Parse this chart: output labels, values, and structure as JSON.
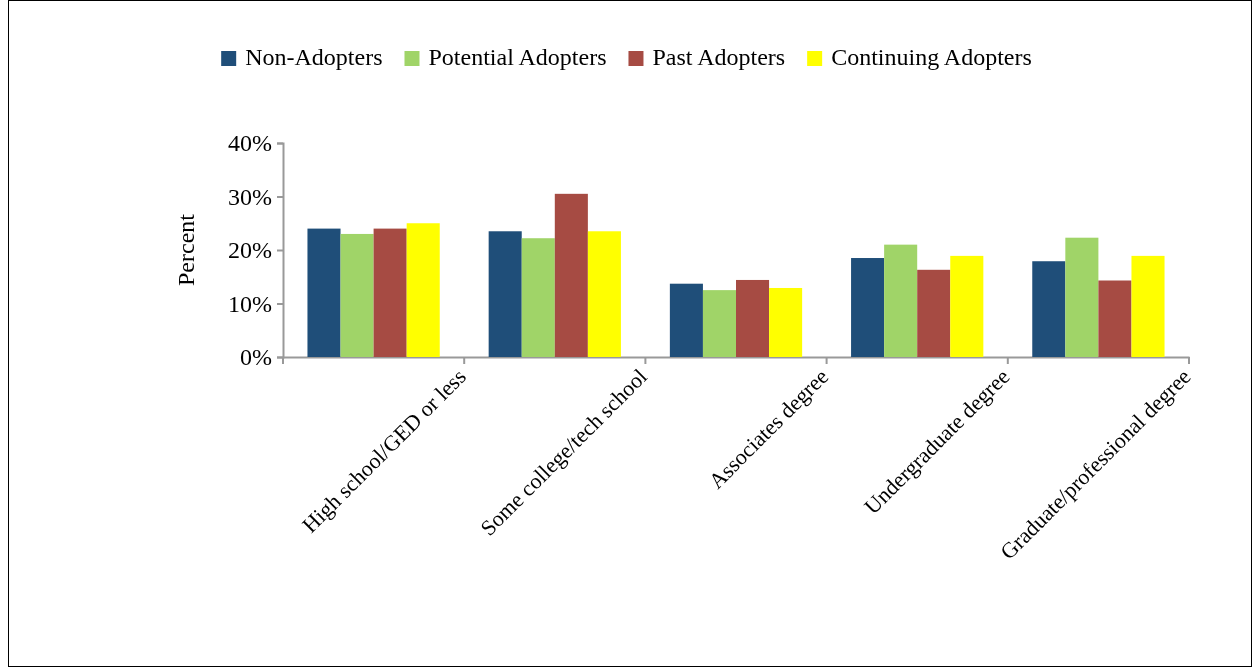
{
  "chart_data": {
    "type": "bar",
    "ylabel": "Percent",
    "categories": [
      "High school/GED or less",
      "Some college/tech school",
      "Associates degree",
      "Undergraduate degree",
      "Graduate/professional degree"
    ],
    "series": [
      {
        "name": "Non-Adopters",
        "color": "#1f4e79",
        "values": [
          24,
          23.5,
          13.7,
          18.5,
          17.9
        ]
      },
      {
        "name": "Potential Adopters",
        "color": "#a0d468",
        "values": [
          23,
          22.2,
          12.5,
          21,
          22.3
        ]
      },
      {
        "name": "Past Adopters",
        "color": "#a64b43",
        "values": [
          24,
          30.5,
          14.4,
          16.3,
          14.3
        ]
      },
      {
        "name": "Continuing Adopters",
        "color": "#ffff00",
        "values": [
          25,
          23.5,
          12.9,
          18.9,
          18.9
        ]
      }
    ],
    "ylim": [
      0,
      40
    ],
    "yticks": [
      {
        "value": 0,
        "label": "0%"
      },
      {
        "value": 10,
        "label": "10%"
      },
      {
        "value": 20,
        "label": "20%"
      },
      {
        "value": 30,
        "label": "30%"
      },
      {
        "value": 40,
        "label": "40%"
      }
    ],
    "grid": false,
    "legend": "top"
  }
}
